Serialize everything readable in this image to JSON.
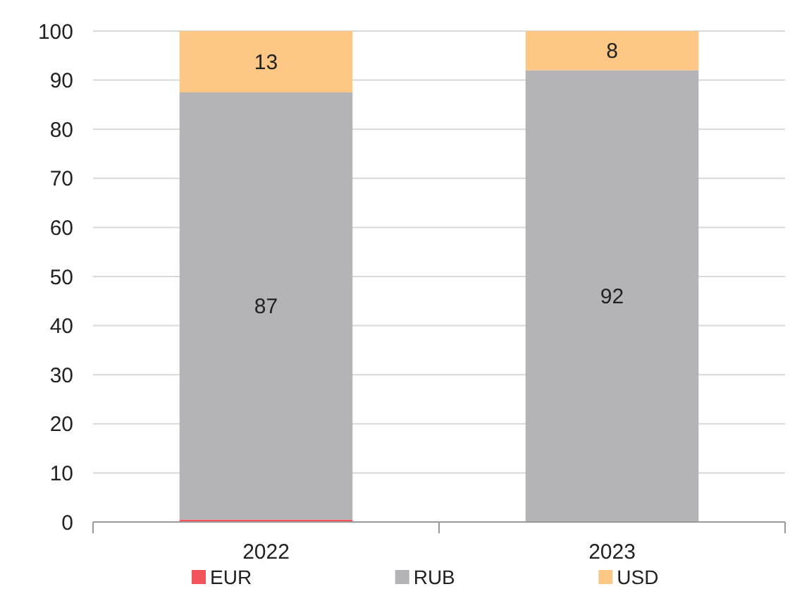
{
  "chart_data": {
    "type": "bar",
    "stacked": true,
    "categories": [
      "2022",
      "2023"
    ],
    "series": [
      {
        "name": "EUR",
        "color": "#f2545b",
        "values": [
          0.5,
          0
        ],
        "value_labels": [
          null,
          null
        ]
      },
      {
        "name": "RUB",
        "color": "#b4b4b6",
        "values": [
          87,
          92
        ],
        "value_labels": [
          "87",
          "92"
        ]
      },
      {
        "name": "USD",
        "color": "#fdc886",
        "values": [
          12.5,
          8
        ],
        "value_labels": [
          "13",
          "8"
        ]
      }
    ],
    "ylim": [
      0,
      100
    ],
    "yticks": [
      0,
      10,
      20,
      30,
      40,
      50,
      60,
      70,
      80,
      90,
      100
    ],
    "grid": "y",
    "legend": "bottom"
  }
}
